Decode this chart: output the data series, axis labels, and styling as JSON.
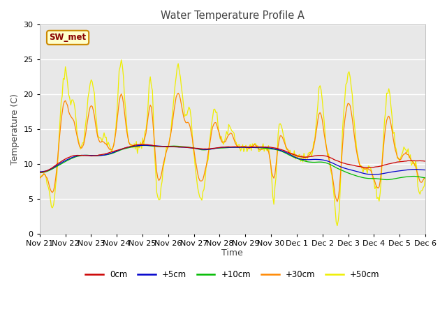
{
  "title": "Water Temperature Profile A",
  "xlabel": "Time",
  "ylabel": "Temperature (C)",
  "ylim": [
    0,
    30
  ],
  "fig_bg": "#ffffff",
  "plot_bg": "#e8e8e8",
  "grid_color": "#ffffff",
  "line_colors": {
    "0cm": "#cc0000",
    "+5cm": "#0000cc",
    "+10cm": "#00bb00",
    "+30cm": "#ff8800",
    "+50cm": "#eeee00"
  },
  "legend_label": "SW_met",
  "legend_box_facecolor": "#ffffcc",
  "legend_box_edgecolor": "#cc8800",
  "tick_labels": [
    "Nov 21",
    "Nov 22",
    "Nov 23",
    "Nov 24",
    "Nov 25",
    "Nov 26",
    "Nov 27",
    "Nov 28",
    "Nov 29",
    "Nov 30",
    "Dec 1",
    "Dec 2",
    "Dec 3",
    "Dec 4",
    "Dec 5",
    "Dec 6"
  ],
  "figsize": [
    6.4,
    4.8
  ],
  "dpi": 100
}
